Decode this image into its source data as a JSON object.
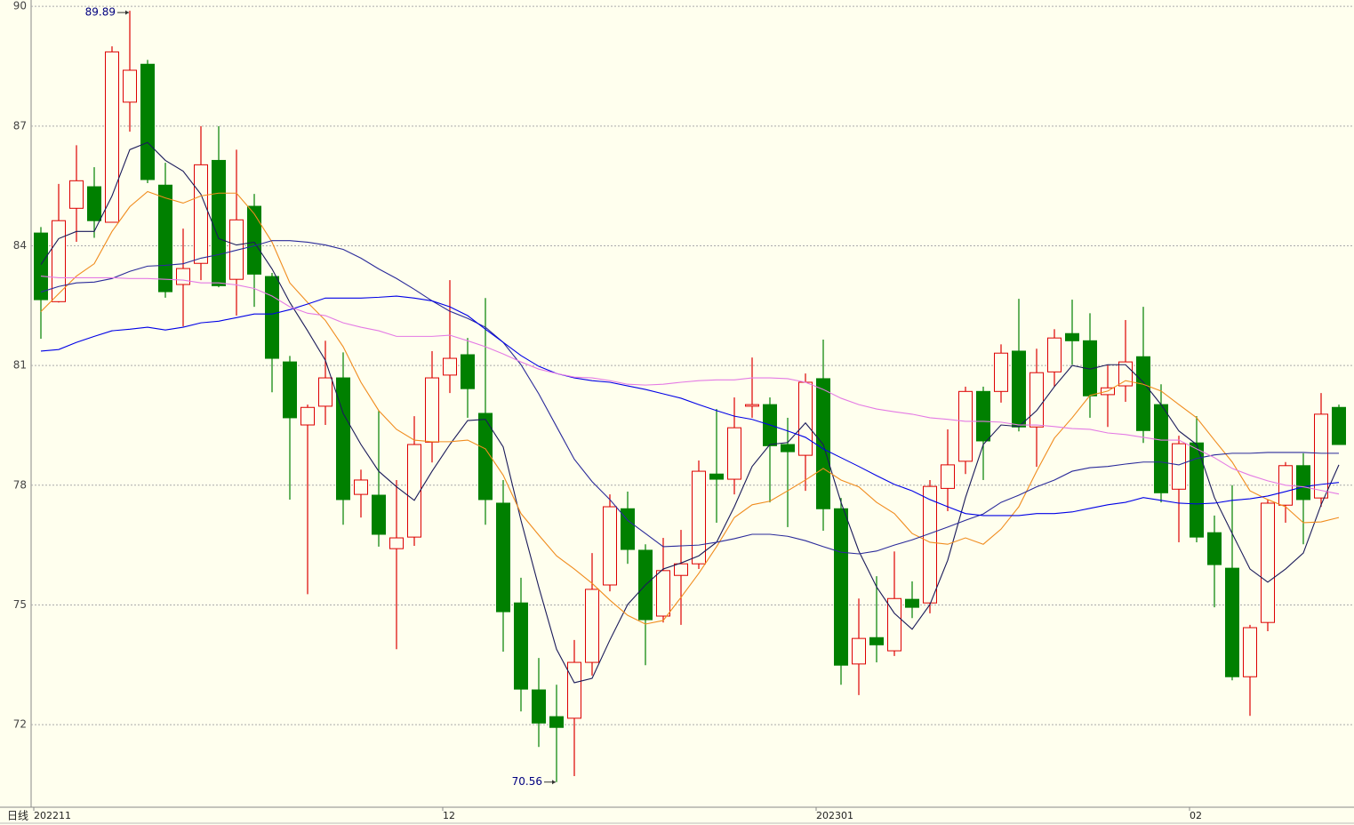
{
  "chart_data": {
    "type": "candlestick",
    "period_label": "日线",
    "categories": [
      "202211",
      null,
      null,
      null,
      null,
      null,
      null,
      null,
      null,
      null,
      null,
      null,
      null,
      null,
      null,
      null,
      null,
      null,
      null,
      null,
      null,
      null,
      null,
      "12",
      null,
      null,
      null,
      null,
      null,
      null,
      null,
      null,
      null,
      null,
      null,
      null,
      null,
      null,
      null,
      null,
      null,
      null,
      null,
      null,
      "202301",
      null,
      null,
      null,
      null,
      null,
      null,
      null,
      null,
      null,
      null,
      null,
      null,
      null,
      null,
      null,
      null,
      null,
      null,
      null,
      null,
      "02",
      null,
      null,
      null,
      null,
      null,
      null,
      null,
      null
    ],
    "open": [
      84.32,
      82.6,
      84.94,
      85.48,
      84.59,
      87.6,
      88.55,
      85.52,
      83.03,
      83.56,
      86.14,
      83.16,
      84.99,
      83.23,
      81.09,
      79.51,
      79.98,
      80.69,
      77.77,
      77.75,
      76.41,
      76.7,
      79.08,
      80.76,
      81.27,
      79.8,
      77.55,
      75.05,
      72.87,
      72.2,
      72.16,
      73.56,
      75.5,
      77.41,
      76.37,
      74.72,
      75.74,
      76.03,
      78.28,
      78.15,
      79.98,
      80.02,
      79.02,
      78.75,
      80.67,
      77.41,
      73.52,
      74.18,
      73.85,
      75.14,
      75.05,
      77.92,
      78.6,
      80.35,
      80.35,
      81.36,
      79.46,
      80.84,
      81.8,
      81.62,
      80.27,
      80.49,
      81.22,
      80.02,
      77.9,
      79.06,
      76.81,
      75.92,
      73.2,
      74.56,
      77.5,
      78.49,
      77.68,
      79.95
    ],
    "high": [
      84.47,
      85.55,
      86.52,
      85.97,
      89.0,
      89.89,
      88.66,
      86.08,
      84.43,
      87.0,
      87.0,
      86.41,
      85.3,
      83.32,
      81.24,
      80.02,
      81.62,
      81.33,
      78.39,
      79.86,
      78.13,
      79.73,
      81.36,
      83.14,
      81.69,
      82.69,
      78.13,
      75.68,
      73.67,
      73.0,
      74.12,
      76.3,
      77.77,
      77.84,
      76.52,
      76.68,
      76.88,
      78.62,
      79.91,
      80.2,
      81.2,
      80.2,
      79.69,
      80.8,
      81.65,
      77.68,
      75.16,
      75.72,
      76.34,
      75.59,
      78.13,
      79.4,
      80.47,
      80.47,
      81.53,
      82.67,
      81.42,
      81.91,
      82.65,
      82.31,
      81.02,
      82.14,
      82.47,
      80.53,
      79.24,
      79.73,
      77.24,
      78.0,
      74.5,
      77.64,
      78.58,
      78.8,
      80.31,
      80.02
    ],
    "low": [
      81.67,
      82.58,
      84.1,
      84.2,
      84.59,
      86.86,
      85.57,
      82.7,
      81.98,
      83.14,
      82.96,
      82.25,
      82.47,
      80.33,
      77.64,
      75.27,
      79.51,
      77.01,
      77.19,
      76.46,
      73.89,
      76.48,
      78.57,
      80.31,
      79.69,
      77.01,
      73.83,
      72.33,
      71.44,
      70.56,
      70.71,
      73.23,
      75.34,
      76.03,
      73.49,
      74.56,
      74.5,
      75.9,
      77.06,
      77.77,
      79.69,
      77.57,
      76.95,
      77.86,
      76.86,
      73.0,
      72.74,
      73.56,
      73.72,
      74.67,
      74.79,
      77.35,
      78.28,
      78.13,
      80.07,
      79.35,
      78.46,
      80.47,
      81.02,
      79.69,
      79.46,
      80.09,
      79.06,
      77.57,
      76.57,
      76.57,
      74.94,
      73.11,
      72.22,
      74.34,
      77.06,
      76.52,
      77.46,
      79.02
    ],
    "close": [
      82.65,
      84.63,
      85.63,
      84.63,
      88.86,
      88.4,
      85.66,
      82.85,
      83.43,
      86.03,
      83.0,
      84.65,
      83.29,
      81.18,
      79.69,
      79.95,
      80.69,
      77.64,
      78.13,
      76.77,
      76.68,
      79.02,
      80.69,
      81.18,
      80.42,
      77.64,
      74.83,
      72.89,
      72.04,
      71.93,
      73.56,
      75.39,
      77.46,
      76.39,
      74.63,
      75.86,
      76.03,
      78.35,
      78.15,
      79.44,
      80.02,
      78.99,
      78.84,
      80.58,
      77.41,
      73.49,
      74.16,
      74.0,
      75.16,
      74.94,
      77.97,
      78.51,
      80.35,
      79.11,
      81.31,
      79.46,
      80.82,
      81.69,
      81.62,
      80.24,
      80.44,
      81.09,
      79.37,
      77.81,
      79.04,
      76.7,
      76.01,
      73.2,
      74.43,
      77.55,
      78.49,
      77.64,
      79.78,
      79.02
    ],
    "up_color": "#dd0000",
    "down_color": "#008000",
    "series": [
      {
        "color": "#1a1a5a",
        "values": [
          83.53,
          84.18,
          84.36,
          84.36,
          85.25,
          86.41,
          86.59,
          86.14,
          85.87,
          85.29,
          84.18,
          84.02,
          84.09,
          83.42,
          82.58,
          81.87,
          81.13,
          79.8,
          79.02,
          78.35,
          77.96,
          77.62,
          78.35,
          79.02,
          79.62,
          79.65,
          78.96,
          77.12,
          75.45,
          73.89,
          73.05,
          73.16,
          74.12,
          75.01,
          75.5,
          75.9,
          76.05,
          76.23,
          76.57,
          77.46,
          78.47,
          79.02,
          79.07,
          79.56,
          79.02,
          77.57,
          76.35,
          75.45,
          74.79,
          74.39,
          75.01,
          76.12,
          77.69,
          79.02,
          79.51,
          79.47,
          79.87,
          80.47,
          81.0,
          80.91,
          81.02,
          81.02,
          80.58,
          80.02,
          79.36,
          79.02,
          77.69,
          76.79,
          75.9,
          75.57,
          75.9,
          76.3,
          77.51,
          78.51
        ]
      },
      {
        "color": "#f08c1e",
        "values": [
          82.35,
          82.8,
          83.24,
          83.55,
          84.36,
          84.98,
          85.36,
          85.2,
          85.07,
          85.25,
          85.32,
          85.32,
          84.8,
          84.09,
          83.07,
          82.58,
          82.13,
          81.47,
          80.58,
          79.87,
          79.4,
          79.13,
          79.09,
          79.09,
          79.13,
          78.91,
          78.25,
          77.29,
          76.75,
          76.23,
          75.9,
          75.54,
          75.12,
          74.74,
          74.52,
          74.61,
          75.19,
          75.79,
          76.46,
          77.19,
          77.51,
          77.6,
          77.86,
          78.13,
          78.42,
          78.13,
          77.96,
          77.57,
          77.29,
          76.79,
          76.57,
          76.52,
          76.68,
          76.52,
          76.9,
          77.46,
          78.35,
          79.18,
          79.69,
          80.25,
          80.36,
          80.62,
          80.53,
          80.36,
          80.02,
          79.69,
          79.13,
          78.58,
          77.86,
          77.64,
          77.46,
          77.06,
          77.08,
          77.19
        ]
      },
      {
        "color": "#2a2a9a",
        "values": [
          82.84,
          82.98,
          83.07,
          83.09,
          83.18,
          83.36,
          83.49,
          83.51,
          83.55,
          83.69,
          83.78,
          83.89,
          84.0,
          84.13,
          84.13,
          84.09,
          84.02,
          83.91,
          83.69,
          83.42,
          83.18,
          82.91,
          82.62,
          82.36,
          82.18,
          81.96,
          81.58,
          81.02,
          80.29,
          79.47,
          78.65,
          78.09,
          77.64,
          77.12,
          76.79,
          76.46,
          76.48,
          76.5,
          76.57,
          76.66,
          76.77,
          76.77,
          76.72,
          76.61,
          76.46,
          76.32,
          76.28,
          76.35,
          76.5,
          76.63,
          76.79,
          76.95,
          77.12,
          77.28,
          77.57,
          77.75,
          77.96,
          78.13,
          78.35,
          78.44,
          78.47,
          78.53,
          78.58,
          78.58,
          78.51,
          78.67,
          78.76,
          78.8,
          78.8,
          78.82,
          78.82,
          78.82,
          78.8,
          78.8
        ]
      },
      {
        "color": "#0000e6",
        "values": [
          81.36,
          81.4,
          81.58,
          81.73,
          81.87,
          81.91,
          81.96,
          81.89,
          81.96,
          82.07,
          82.11,
          82.2,
          82.29,
          82.29,
          82.4,
          82.54,
          82.69,
          82.69,
          82.69,
          82.71,
          82.74,
          82.69,
          82.62,
          82.47,
          82.25,
          81.91,
          81.58,
          81.25,
          80.98,
          80.8,
          80.69,
          80.62,
          80.58,
          80.49,
          80.4,
          80.29,
          80.18,
          80.02,
          79.87,
          79.73,
          79.65,
          79.51,
          79.36,
          79.2,
          78.91,
          78.69,
          78.47,
          78.24,
          78.02,
          77.86,
          77.64,
          77.46,
          77.29,
          77.24,
          77.24,
          77.24,
          77.29,
          77.29,
          77.33,
          77.42,
          77.51,
          77.57,
          77.69,
          77.62,
          77.55,
          77.53,
          77.55,
          77.62,
          77.66,
          77.73,
          77.84,
          77.96,
          78.02,
          78.07
        ]
      },
      {
        "color": "#e47ae4",
        "values": [
          83.24,
          83.2,
          83.2,
          83.2,
          83.2,
          83.18,
          83.18,
          83.16,
          83.14,
          83.07,
          83.07,
          83.02,
          82.93,
          82.74,
          82.47,
          82.31,
          82.25,
          82.07,
          81.96,
          81.87,
          81.73,
          81.73,
          81.73,
          81.76,
          81.62,
          81.47,
          81.29,
          81.09,
          80.91,
          80.8,
          80.71,
          80.69,
          80.62,
          80.53,
          80.51,
          80.53,
          80.58,
          80.62,
          80.64,
          80.64,
          80.69,
          80.69,
          80.67,
          80.58,
          80.4,
          80.18,
          80.02,
          79.91,
          79.84,
          79.78,
          79.69,
          79.65,
          79.6,
          79.6,
          79.58,
          79.51,
          79.51,
          79.47,
          79.42,
          79.4,
          79.31,
          79.27,
          79.2,
          79.13,
          79.13,
          78.91,
          78.69,
          78.42,
          78.25,
          78.11,
          78.0,
          77.96,
          77.87,
          77.78
        ]
      }
    ],
    "extreme_labels": [
      89.89,
      70.56
    ],
    "ylim": [
      69.93,
      90.16
    ],
    "yticks": [
      72,
      75,
      78,
      81,
      84,
      87,
      90
    ],
    "grid": true
  }
}
